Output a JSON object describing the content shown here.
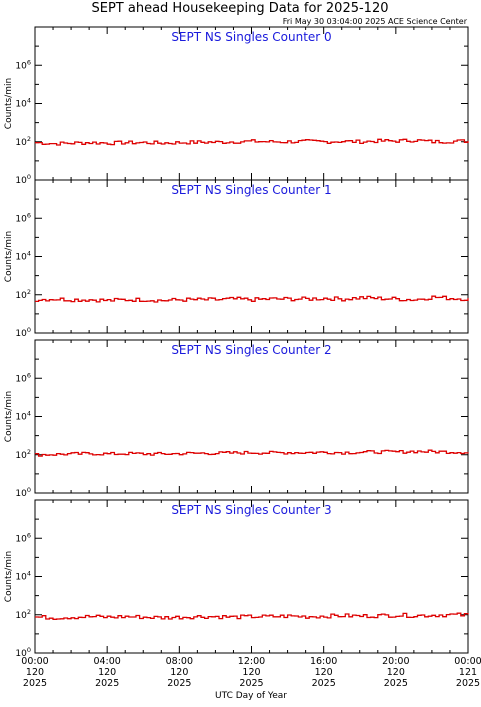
{
  "header": {
    "title": "SEPT ahead Housekeeping Data for 2025-120",
    "timestamp": "Fri May 30 03:04:00 2025 ACE Science Center"
  },
  "x_axis": {
    "label": "UTC Day of Year",
    "ticks": [
      {
        "time": "00:00",
        "day": "120",
        "year": "2025"
      },
      {
        "time": "04:00",
        "day": "120",
        "year": "2025"
      },
      {
        "time": "08:00",
        "day": "120",
        "year": "2025"
      },
      {
        "time": "12:00",
        "day": "120",
        "year": "2025"
      },
      {
        "time": "16:00",
        "day": "120",
        "year": "2025"
      },
      {
        "time": "20:00",
        "day": "120",
        "year": "2025"
      },
      {
        "time": "00:00",
        "day": "121",
        "year": "2025"
      }
    ]
  },
  "y_axis": {
    "label": "Counts/min",
    "tick_labels": [
      {
        "base": "10",
        "exp": "0"
      },
      {
        "base": "10",
        "exp": "2"
      },
      {
        "base": "10",
        "exp": "4"
      },
      {
        "base": "10",
        "exp": "6"
      }
    ]
  },
  "chart_data": [
    {
      "type": "line",
      "title": "SEPT NS Singles Counter 0",
      "x_range_hours": [
        0,
        24
      ],
      "ylim": [
        1,
        100000000
      ],
      "y_scale": "log",
      "series_color": "#dd0000",
      "title_color": "#1a1adc",
      "approx_level": 90,
      "wiggle": 0.09,
      "hours": [
        0,
        1,
        2,
        3,
        4,
        5,
        6,
        7,
        8,
        9,
        10,
        11,
        12,
        13,
        14,
        15,
        16,
        17,
        18,
        19,
        20,
        21,
        22,
        23,
        24
      ],
      "values": [
        90,
        80,
        85,
        90,
        85,
        90,
        90,
        85,
        90,
        95,
        95,
        100,
        105,
        100,
        100,
        105,
        100,
        105,
        100,
        110,
        110,
        120,
        100,
        105,
        110
      ]
    },
    {
      "type": "line",
      "title": "SEPT NS Singles Counter 1",
      "x_range_hours": [
        0,
        24
      ],
      "ylim": [
        1,
        100000000
      ],
      "y_scale": "log",
      "series_color": "#dd0000",
      "title_color": "#1a1adc",
      "approx_level": 60,
      "wiggle": 0.1,
      "hours": [
        0,
        1,
        2,
        3,
        4,
        5,
        6,
        7,
        8,
        9,
        10,
        11,
        12,
        13,
        14,
        15,
        16,
        17,
        18,
        19,
        20,
        21,
        22,
        23,
        24
      ],
      "values": [
        55,
        60,
        55,
        55,
        50,
        55,
        55,
        50,
        55,
        55,
        55,
        60,
        55,
        60,
        60,
        60,
        65,
        60,
        70,
        65,
        60,
        55,
        75,
        65,
        60
      ]
    },
    {
      "type": "line",
      "title": "SEPT NS Singles Counter 2",
      "x_range_hours": [
        0,
        24
      ],
      "ylim": [
        1,
        100000000
      ],
      "y_scale": "log",
      "series_color": "#dd0000",
      "title_color": "#1a1adc",
      "approx_level": 120,
      "wiggle": 0.08,
      "hours": [
        0,
        1,
        2,
        3,
        4,
        5,
        6,
        7,
        8,
        9,
        10,
        11,
        12,
        13,
        14,
        15,
        16,
        17,
        18,
        19,
        20,
        21,
        22,
        23,
        24
      ],
      "values": [
        100,
        105,
        110,
        115,
        110,
        115,
        110,
        110,
        115,
        120,
        120,
        125,
        130,
        125,
        130,
        130,
        135,
        130,
        135,
        140,
        140,
        150,
        145,
        140,
        135
      ]
    },
    {
      "type": "line",
      "title": "SEPT NS Singles Counter 3",
      "x_range_hours": [
        0,
        24
      ],
      "ylim": [
        1,
        100000000
      ],
      "y_scale": "log",
      "series_color": "#dd0000",
      "title_color": "#1a1adc",
      "approx_level": 80,
      "wiggle": 0.1,
      "hours": [
        0,
        1,
        2,
        3,
        4,
        5,
        6,
        7,
        8,
        9,
        10,
        11,
        12,
        13,
        14,
        15,
        16,
        17,
        18,
        19,
        20,
        21,
        22,
        23,
        24
      ],
      "values": [
        75,
        70,
        75,
        80,
        75,
        80,
        75,
        70,
        75,
        80,
        80,
        75,
        80,
        80,
        85,
        80,
        85,
        90,
        85,
        90,
        95,
        90,
        95,
        100,
        95
      ]
    }
  ]
}
